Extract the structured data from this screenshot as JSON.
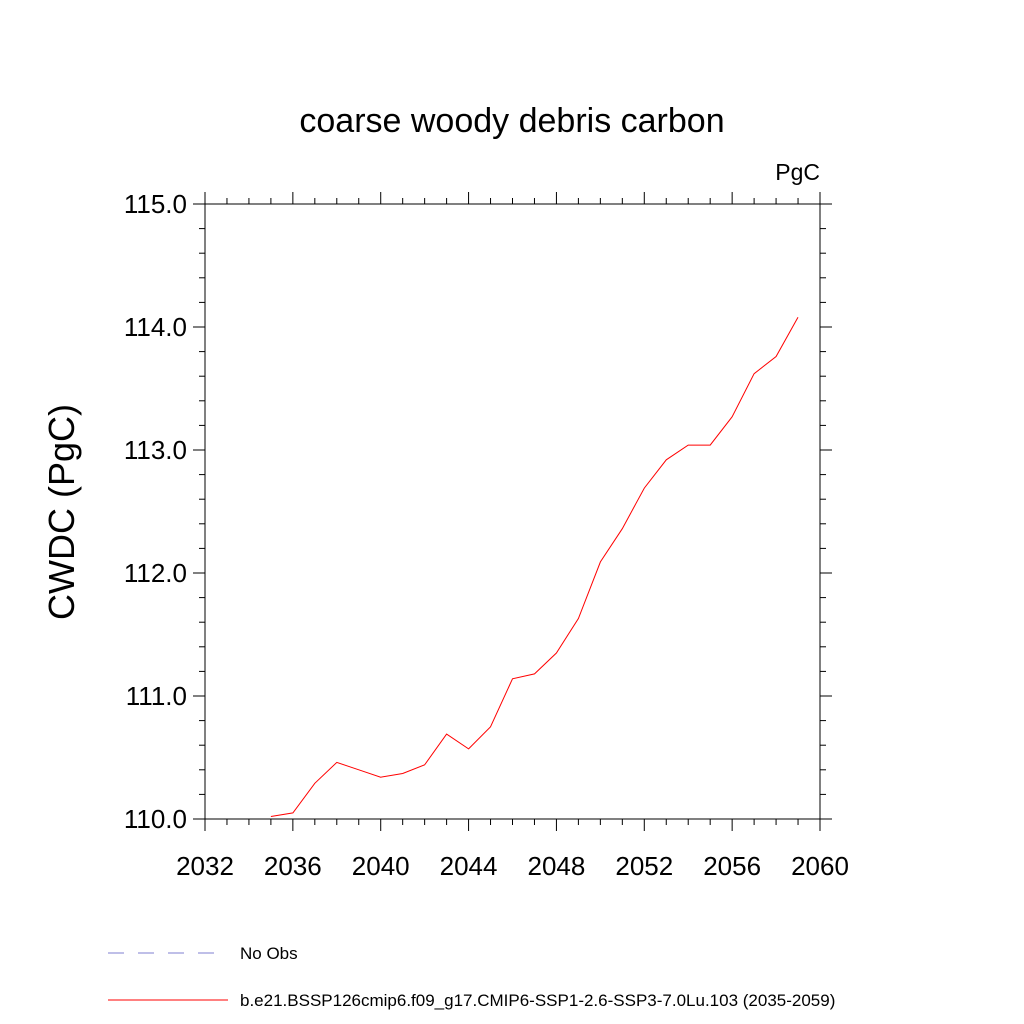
{
  "chart_data": {
    "type": "line",
    "title": "coarse woody debris carbon",
    "units_label": "PgC",
    "xlabel": "",
    "ylabel": "CWDC  (PgC)",
    "xlim": [
      2032,
      2060
    ],
    "ylim": [
      110.0,
      115.0
    ],
    "x_ticks": [
      2032,
      2036,
      2040,
      2044,
      2048,
      2052,
      2056,
      2060
    ],
    "y_ticks": [
      110.0,
      111.0,
      112.0,
      113.0,
      114.0,
      115.0
    ],
    "y_tick_labels": [
      "110.0",
      "111.0",
      "112.0",
      "113.0",
      "114.0",
      "115.0"
    ],
    "grid": false,
    "legend_position": "bottom-left",
    "series": [
      {
        "name": "b.e21.BSSP126cmip6.f09_g17.CMIP6-SSP1-2.6-SSP3-7.0Lu.103 (2035-2059)",
        "color": "#ff0000",
        "style": "solid",
        "x": [
          2035,
          2036,
          2037,
          2038,
          2039,
          2040,
          2041,
          2042,
          2043,
          2044,
          2045,
          2046,
          2047,
          2048,
          2049,
          2050,
          2051,
          2052,
          2053,
          2054,
          2055,
          2056,
          2057,
          2058,
          2059
        ],
        "y": [
          110.02,
          110.05,
          110.29,
          110.46,
          110.4,
          110.34,
          110.37,
          110.44,
          110.69,
          110.57,
          110.75,
          111.14,
          111.18,
          111.35,
          111.63,
          112.09,
          112.36,
          112.69,
          112.92,
          113.04,
          113.04,
          113.27,
          113.62,
          113.76,
          114.08
        ]
      }
    ],
    "legend": [
      {
        "label": "No Obs",
        "color": "#7f7fd0",
        "style": "dashed"
      },
      {
        "label": "b.e21.BSSP126cmip6.f09_g17.CMIP6-SSP1-2.6-SSP3-7.0Lu.103 (2035-2059)",
        "color": "#ff0000",
        "style": "solid"
      }
    ]
  }
}
